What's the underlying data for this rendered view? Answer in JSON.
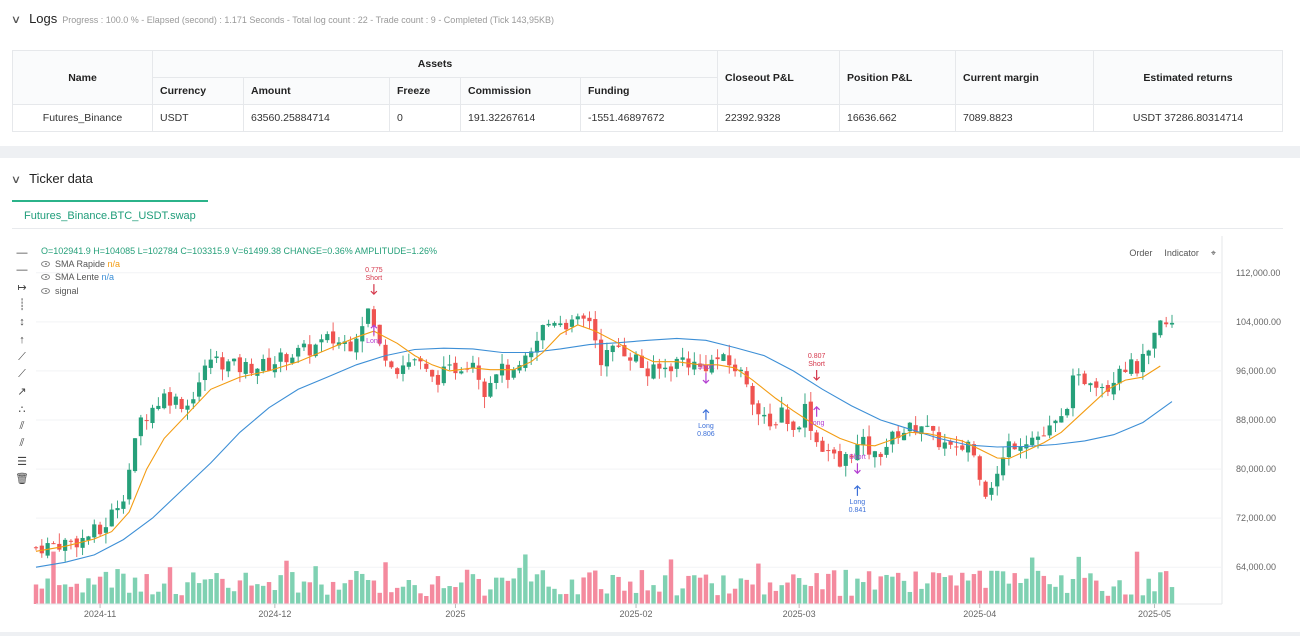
{
  "logs": {
    "title": "Logs",
    "progress": "Progress : 100.0 % - Elapsed (second) : 1.171 Seconds - Total log count : 22 - Trade count : 9 - Completed (Tick 143,95KB)"
  },
  "assets_table": {
    "group_header": "Assets",
    "headers": {
      "name": "Name",
      "currency": "Currency",
      "amount": "Amount",
      "freeze": "Freeze",
      "commission": "Commission",
      "funding": "Funding",
      "closeout": "Closeout P&L",
      "position": "Position P&L",
      "margin": "Current margin",
      "returns": "Estimated returns"
    },
    "row": {
      "name": "Futures_Binance",
      "currency": "USDT",
      "amount": "63560.25884714",
      "freeze": "0",
      "commission": "191.32267614",
      "funding": "-1551.46897672",
      "closeout": "22392.9328",
      "position": "16636.662",
      "margin": "7089.8823",
      "returns": "USDT 37286.80314714"
    }
  },
  "ticker": {
    "title": "Ticker data",
    "tab": "Futures_Binance.BTC_USDT.swap",
    "ohlc": "O=102941.9 H=104085 L=102784 C=103315.9 V=61499.38 CHANGE=0.36% AMPLITUDE=1.26%",
    "indicators": [
      {
        "name": "SMA Rapide",
        "value": "n/a",
        "color": "#f39c12"
      },
      {
        "name": "SMA Lente",
        "value": "n/a",
        "color": "#3d8fd6"
      },
      {
        "name": "signal",
        "value": ""
      }
    ],
    "buttons": {
      "order": "Order",
      "indicator": "Indicator"
    }
  },
  "colors": {
    "up": "#26a07a",
    "down": "#ef5350",
    "vol_up": "#7fd1b2",
    "vol_down": "#f48a9e",
    "fast": "#f39c12",
    "slow": "#3d8fd6",
    "short": "#d5374b",
    "long": "#3b6fd8",
    "signal": "#b33fd1"
  },
  "chart_data": {
    "type": "candlestick",
    "symbol": "BTC_USDT",
    "y_ticks": [
      64000,
      72000,
      80000,
      88000,
      96000,
      104000,
      112000
    ],
    "y_tick_labels": [
      "64,000.00",
      "72,000.00",
      "80,000.00",
      "88,000.00",
      "96,000.00",
      "104,000.00",
      "112,000.00"
    ],
    "ylim": [
      58000,
      118000
    ],
    "x_ticks": [
      {
        "label": "2024-11",
        "day": 11
      },
      {
        "label": "2024-12",
        "day": 41
      },
      {
        "label": "2025",
        "day": 72
      },
      {
        "label": "2025-02",
        "day": 103
      },
      {
        "label": "2025-03",
        "day": 131
      },
      {
        "label": "2025-04",
        "day": 162
      },
      {
        "label": "2025-05",
        "day": 192
      }
    ],
    "days": 195,
    "close_path": [
      [
        0,
        67200
      ],
      [
        8,
        68500
      ],
      [
        10,
        69800
      ],
      [
        11,
        69500
      ],
      [
        15,
        76000
      ],
      [
        18,
        88000
      ],
      [
        22,
        92000
      ],
      [
        26,
        90500
      ],
      [
        30,
        98000
      ],
      [
        35,
        96500
      ],
      [
        40,
        97000
      ],
      [
        43,
        98500
      ],
      [
        47,
        99500
      ],
      [
        50,
        101000
      ],
      [
        54,
        100500
      ],
      [
        57,
        106000
      ],
      [
        59,
        100000
      ],
      [
        62,
        96500
      ],
      [
        65,
        98000
      ],
      [
        68,
        94500
      ],
      [
        71,
        96000
      ],
      [
        75,
        98000
      ],
      [
        77,
        93000
      ],
      [
        79,
        96500
      ],
      [
        82,
        95000
      ],
      [
        85,
        98500
      ],
      [
        87,
        103000
      ],
      [
        89,
        104500
      ],
      [
        92,
        103500
      ],
      [
        95,
        104500
      ],
      [
        97,
        98000
      ],
      [
        100,
        100000
      ],
      [
        103,
        98000
      ],
      [
        105,
        95500
      ],
      [
        108,
        96500
      ],
      [
        111,
        98000
      ],
      [
        114,
        96500
      ],
      [
        117,
        98000
      ],
      [
        120,
        96500
      ],
      [
        122,
        94500
      ],
      [
        124,
        89000
      ],
      [
        126,
        86500
      ],
      [
        128,
        90000
      ],
      [
        130,
        86000
      ],
      [
        132,
        90000
      ],
      [
        134,
        84500
      ],
      [
        136,
        83000
      ],
      [
        138,
        80500
      ],
      [
        140,
        83000
      ],
      [
        142,
        84000
      ],
      [
        144,
        82000
      ],
      [
        146,
        84000
      ],
      [
        148,
        86000
      ],
      [
        150,
        86500
      ],
      [
        152,
        87500
      ],
      [
        154,
        85000
      ],
      [
        156,
        84000
      ],
      [
        158,
        82500
      ],
      [
        160,
        84500
      ],
      [
        162,
        79500
      ],
      [
        163,
        76500
      ],
      [
        165,
        79000
      ],
      [
        167,
        84000
      ],
      [
        170,
        85000
      ],
      [
        173,
        85500
      ],
      [
        176,
        88000
      ],
      [
        178,
        94000
      ],
      [
        181,
        95000
      ],
      [
        184,
        93500
      ],
      [
        186,
        97000
      ],
      [
        189,
        96500
      ],
      [
        191,
        98500
      ],
      [
        193,
        103500
      ],
      [
        195,
        103300
      ]
    ],
    "fast_sma": [
      [
        0,
        66600
      ],
      [
        5,
        67400
      ],
      [
        10,
        68600
      ],
      [
        13,
        69800
      ],
      [
        16,
        73000
      ],
      [
        19,
        80000
      ],
      [
        22,
        85000
      ],
      [
        26,
        89000
      ],
      [
        30,
        93000
      ],
      [
        35,
        95000
      ],
      [
        40,
        96000
      ],
      [
        45,
        97500
      ],
      [
        50,
        99500
      ],
      [
        55,
        101500
      ],
      [
        58,
        102500
      ],
      [
        62,
        100500
      ],
      [
        65,
        98500
      ],
      [
        68,
        97000
      ],
      [
        71,
        96000
      ],
      [
        75,
        96500
      ],
      [
        78,
        96200
      ],
      [
        82,
        96200
      ],
      [
        85,
        97500
      ],
      [
        87,
        99000
      ],
      [
        90,
        102000
      ],
      [
        93,
        103500
      ],
      [
        96,
        102500
      ],
      [
        100,
        100500
      ],
      [
        103,
        98800
      ],
      [
        106,
        97500
      ],
      [
        110,
        97500
      ],
      [
        114,
        97000
      ],
      [
        117,
        97000
      ],
      [
        120,
        96500
      ],
      [
        123,
        94500
      ],
      [
        127,
        91500
      ],
      [
        130,
        89500
      ],
      [
        134,
        87000
      ],
      [
        138,
        85000
      ],
      [
        141,
        84000
      ],
      [
        144,
        83800
      ],
      [
        147,
        84800
      ],
      [
        150,
        86000
      ],
      [
        153,
        85800
      ],
      [
        156,
        85200
      ],
      [
        159,
        84600
      ],
      [
        162,
        83200
      ],
      [
        165,
        81800
      ],
      [
        167,
        81700
      ],
      [
        170,
        83000
      ],
      [
        173,
        84300
      ],
      [
        176,
        86000
      ],
      [
        180,
        89500
      ],
      [
        184,
        93000
      ],
      [
        187,
        94500
      ],
      [
        190,
        95000
      ],
      [
        193,
        96800
      ]
    ],
    "slow_sma": [
      [
        0,
        64000
      ],
      [
        5,
        64800
      ],
      [
        10,
        66000
      ],
      [
        15,
        68500
      ],
      [
        20,
        72000
      ],
      [
        25,
        76500
      ],
      [
        30,
        81000
      ],
      [
        35,
        86000
      ],
      [
        40,
        90000
      ],
      [
        45,
        93000
      ],
      [
        50,
        95000
      ],
      [
        55,
        97000
      ],
      [
        60,
        98500
      ],
      [
        65,
        99500
      ],
      [
        70,
        99700
      ],
      [
        75,
        99600
      ],
      [
        80,
        99000
      ],
      [
        85,
        99000
      ],
      [
        90,
        99600
      ],
      [
        95,
        100300
      ],
      [
        100,
        100600
      ],
      [
        105,
        101000
      ],
      [
        110,
        101300
      ],
      [
        115,
        101000
      ],
      [
        120,
        99800
      ],
      [
        125,
        98500
      ],
      [
        130,
        96000
      ],
      [
        135,
        93000
      ],
      [
        140,
        90300
      ],
      [
        145,
        88000
      ],
      [
        150,
        86500
      ],
      [
        155,
        85000
      ],
      [
        160,
        83900
      ],
      [
        165,
        83600
      ],
      [
        170,
        83700
      ],
      [
        175,
        84000
      ],
      [
        180,
        84600
      ],
      [
        185,
        85600
      ],
      [
        190,
        87600
      ],
      [
        195,
        91000
      ]
    ],
    "signals": [
      {
        "type": "Short",
        "day": 58,
        "price": 109500,
        "value": "0.775"
      },
      {
        "type": "Long",
        "day": 58,
        "price": 102800,
        "value": ""
      },
      {
        "type": "Short",
        "day": 115,
        "price": 95000,
        "value": ""
      },
      {
        "type": "Long",
        "day": 115,
        "price": 89000,
        "value": "0.806"
      },
      {
        "type": "Short",
        "day": 134,
        "price": 95500,
        "value": "0.807"
      },
      {
        "type": "Long",
        "day": 134,
        "price": 89500,
        "value": ""
      },
      {
        "type": "Short",
        "day": 141,
        "price": 80300,
        "value": ""
      },
      {
        "type": "Long",
        "day": 141,
        "price": 76600,
        "value": "0.841"
      }
    ]
  }
}
